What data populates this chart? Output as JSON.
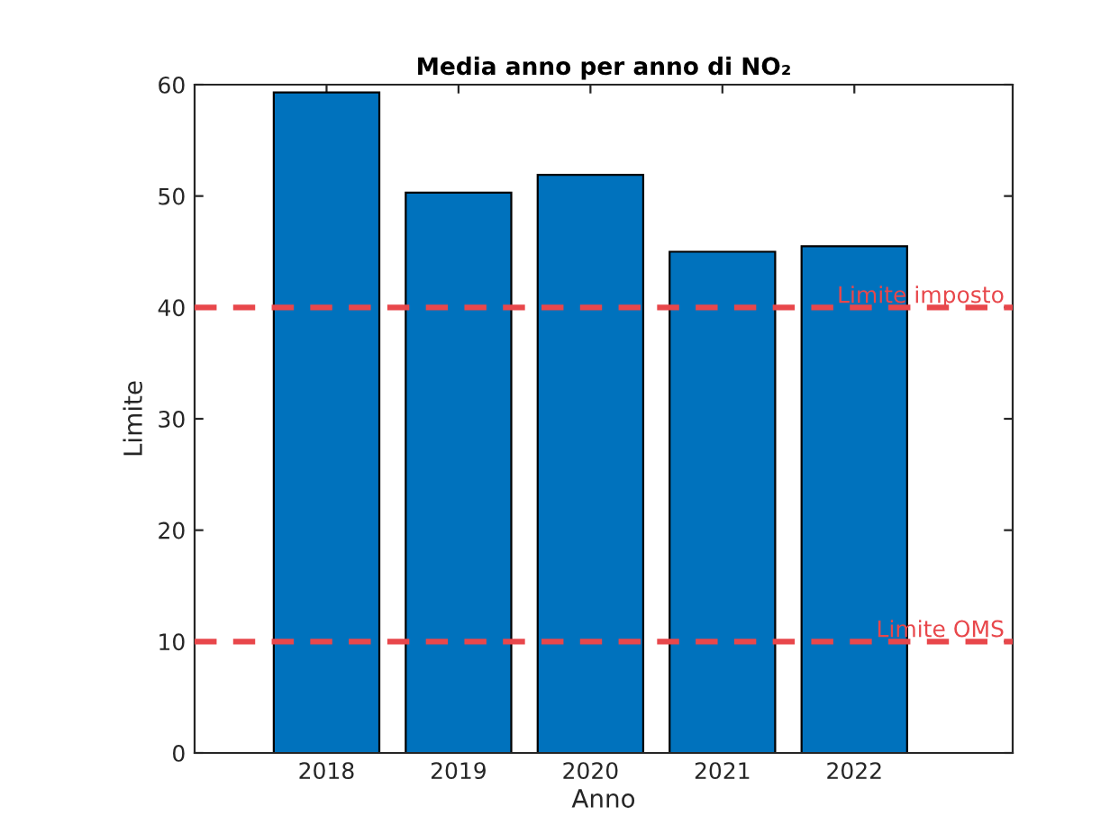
{
  "chart_data": {
    "type": "bar",
    "title": "Media anno per anno di NO₂",
    "xlabel": "Anno",
    "ylabel": "Limite",
    "categories": [
      "2018",
      "2019",
      "2020",
      "2021",
      "2022"
    ],
    "values": [
      59.3,
      50.3,
      51.9,
      45.0,
      45.5
    ],
    "color": "#0072bd",
    "ylim": [
      0,
      60
    ],
    "yticks": [
      0,
      10,
      20,
      30,
      40,
      50,
      60
    ],
    "grid": false,
    "legend": false,
    "ref_lines": [
      {
        "axis": "y",
        "value": 40,
        "label": "Limite imposto",
        "color": "#e8474b",
        "line_style": "dashed"
      },
      {
        "axis": "y",
        "value": 10,
        "label": "Limite OMS",
        "color": "#e8474b",
        "line_style": "dashed"
      }
    ]
  }
}
